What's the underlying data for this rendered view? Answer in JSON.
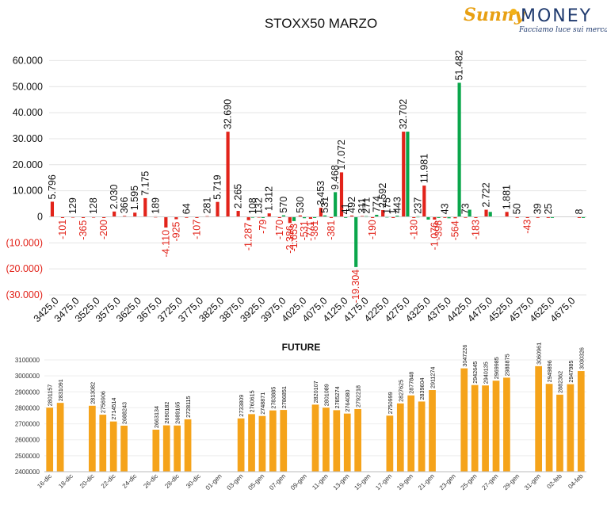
{
  "header": {
    "title": "STOXX50 MARZO",
    "logo": {
      "word1": "Sunny",
      "word2": "MONEY",
      "tagline": "Facciamo luce sui mercati"
    }
  },
  "colors": {
    "calls": "#e2231a",
    "puts": "#0aa64b",
    "future": "#f5a31a",
    "negative_text": "#e2231a"
  },
  "chart_data": [
    {
      "type": "bar",
      "title": "STOXX50 MARZO",
      "ylim": [
        -30000,
        65000
      ],
      "yticks": [
        "(30.000)",
        "(20.000)",
        "(10.000)",
        "0",
        "10.000",
        "20.000",
        "30.000",
        "40.000",
        "50.000",
        "60.000"
      ],
      "ytick_values": [
        -30000,
        -20000,
        -10000,
        0,
        10000,
        20000,
        30000,
        40000,
        50000,
        60000
      ],
      "categories": [
        "3425,0",
        "3450,0",
        "3475,0",
        "3500,0",
        "3525,0",
        "3550,0",
        "3575,0",
        "3600,0",
        "3625,0",
        "3650,0",
        "3675,0",
        "3700,0",
        "3725,0",
        "3750,0",
        "3775,0",
        "3800,0",
        "3825,0",
        "3850,0",
        "3875,0",
        "3900,0",
        "3925,0",
        "3950,0",
        "3975,0",
        "4000,0",
        "4025,0",
        "4050,0",
        "4075,0",
        "4100,0",
        "4125,0",
        "4150,0",
        "4175,0",
        "4200,0",
        "4225,0",
        "4250,0",
        "4275,0",
        "4300,0",
        "4325,0",
        "4350,0",
        "4375,0",
        "4400,0",
        "4425,0",
        "4450,0",
        "4475,0",
        "4500,0",
        "4525,0",
        "4550,0",
        "4575,0",
        "4600,0",
        "4625,0",
        "4650,0",
        "4675,0",
        "4700,0"
      ],
      "xtick_labels": [
        "3425,0",
        "3475,0",
        "3525,0",
        "3575,0",
        "3625,0",
        "3675,0",
        "3725,0",
        "3775,0",
        "3825,0",
        "3875,0",
        "3925,0",
        "3975,0",
        "4025,0",
        "4075,0",
        "4125,0",
        "4175,0",
        "4225,0",
        "4275,0",
        "4325,0",
        "4375,0",
        "4425,0",
        "4475,0",
        "4525,0",
        "4575,0",
        "4625,0",
        "4675,0"
      ],
      "series": [
        {
          "color": "#e2231a",
          "values": [
            5796,
            -101,
            129,
            -365,
            128,
            -200,
            2030,
            366,
            1595,
            7175,
            189,
            -4110,
            -925,
            64,
            -107,
            281,
            5719,
            32690,
            2265,
            -1287,
            132,
            1312,
            -170,
            -2386,
            530,
            -771,
            3453,
            -381,
            17072,
            492,
            311,
            -190,
            2592,
            1,
            32702,
            -130,
            11981,
            -1076,
            43,
            -564,
            73,
            -183,
            2722,
            0,
            1881,
            50,
            -43,
            39,
            25,
            0,
            0,
            8
          ],
          "labels": [
            "5.796",
            "-101",
            "129",
            "-365",
            "128",
            "-200",
            "2.030",
            "366",
            "1.595",
            "7.175",
            "189",
            "-4.110",
            "-925",
            "64",
            "-107",
            "281",
            "5.719",
            "32.690",
            "2.265",
            "-1.287",
            "132",
            "1.312",
            "-170",
            "-2.386",
            "530",
            "-771",
            "3.453",
            "-381",
            "17.072",
            "492",
            "311",
            "-190",
            "2.592",
            "1",
            "32.702",
            "-130",
            "11.981",
            "-1.076",
            "43",
            "-564",
            "73",
            "-183",
            "2.722",
            "",
            "1.881",
            "50",
            "-43",
            "39",
            "25",
            "",
            "",
            "8"
          ]
        },
        {
          "color": "#0aa64b",
          "values": [
            0,
            0,
            0,
            0,
            0,
            0,
            0,
            0,
            0,
            0,
            0,
            0,
            0,
            0,
            0,
            0,
            0,
            0,
            0,
            108,
            -79,
            0,
            570,
            -1653,
            -531,
            -381,
            531,
            9468,
            41,
            -19304,
            271,
            774,
            175,
            443,
            32702,
            237,
            -1076,
            -398,
            -564,
            51482,
            2722,
            0,
            1881,
            0,
            0,
            0,
            0,
            0,
            25,
            0,
            0,
            8
          ],
          "labels": [
            "",
            "",
            "",
            "",
            "",
            "",
            "",
            "",
            "",
            "",
            "",
            "",
            "",
            "",
            "",
            "",
            "",
            "",
            "",
            "108",
            "-79",
            "",
            "570",
            "-1.653",
            "-531",
            "-381",
            "531",
            "9.468",
            "41",
            "-19.304",
            "271",
            "774",
            "175",
            "443",
            "",
            "237",
            "",
            "-398",
            "",
            "51.482",
            "",
            "",
            "",
            "",
            "",
            "",
            "",
            "",
            "",
            "",
            "",
            ""
          ]
        }
      ]
    },
    {
      "type": "bar",
      "title": "FUTURE",
      "ylim": [
        2400000,
        3100000
      ],
      "yticks": [
        "2400000",
        "2500000",
        "2600000",
        "2700000",
        "2800000",
        "2900000",
        "3000000",
        "3100000"
      ],
      "ytick_values": [
        2400000,
        2500000,
        2600000,
        2700000,
        2800000,
        2900000,
        3000000,
        3100000
      ],
      "categories": [
        "16-dic",
        "17-dic",
        "18-dic",
        "19-dic",
        "20-dic",
        "21-dic",
        "22-dic",
        "23-dic",
        "24-dic",
        "25-dic",
        "26-dic",
        "27-dic",
        "28-dic",
        "29-dic",
        "30-dic",
        "31-dic",
        "01-gen",
        "02-gen",
        "03-gen",
        "04-gen",
        "05-gen",
        "06-gen",
        "07-gen",
        "08-gen",
        "09-gen",
        "10-gen",
        "11-gen",
        "12-gen",
        "13-gen",
        "14-gen",
        "15-gen",
        "16-gen",
        "17-gen",
        "18-gen",
        "19-gen",
        "20-gen",
        "21-gen",
        "22-gen",
        "23-gen",
        "24-gen",
        "25-gen",
        "26-gen",
        "27-gen",
        "28-gen",
        "29-gen",
        "30-gen",
        "31-gen",
        "01-feb",
        "02-feb",
        "03-feb",
        "04-feb"
      ],
      "xtick_labels": [
        "16-dic",
        "18-dic",
        "20-dic",
        "22-dic",
        "24-dic",
        "26-dic",
        "28-dic",
        "30-dic",
        "01-gen",
        "03-gen",
        "05-gen",
        "07-gen",
        "09-gen",
        "11-gen",
        "13-gen",
        "15-gen",
        "17-gen",
        "19-gen",
        "21-gen",
        "23-gen",
        "25-gen",
        "27-gen",
        "29-gen",
        "31-gen",
        "02-feb",
        "04-feb"
      ],
      "values": [
        2801157,
        2831091,
        null,
        null,
        2813082,
        2756906,
        2714514,
        2688243,
        null,
        null,
        2663134,
        2690182,
        2689165,
        2728115,
        null,
        null,
        null,
        null,
        2733809,
        2760615,
        2748871,
        2783885,
        2786851,
        null,
        null,
        2820107,
        2801089,
        2785274,
        2764080,
        2792218,
        null,
        null,
        2750999,
        2827625,
        2877848,
        2839604,
        2911274,
        null,
        null,
        3047226,
        2942645,
        2940135,
        2969985,
        2988875,
        null,
        null,
        3060961,
        2949896,
        2882362,
        2947985,
        3030326
      ],
      "labels": [
        "2801157",
        "2831091",
        "",
        "",
        "2813082",
        "2756906",
        "2714514",
        "2688243",
        "",
        "",
        "2663134",
        "2690182",
        "2689165",
        "2728115",
        "",
        "",
        "",
        "",
        "2733809",
        "2760615",
        "2748871",
        "2783885",
        "2786851",
        "",
        "",
        "2820107",
        "2801089",
        "2785274",
        "2764080",
        "2792218",
        "",
        "",
        "2750999",
        "2827625",
        "2877848",
        "2839604",
        "2911274",
        "",
        "",
        "3047226",
        "2942645",
        "2940135",
        "2969985",
        "2988875",
        "",
        "",
        "3060961",
        "2949896",
        "2882362",
        "2947985",
        "3030326"
      ]
    }
  ]
}
